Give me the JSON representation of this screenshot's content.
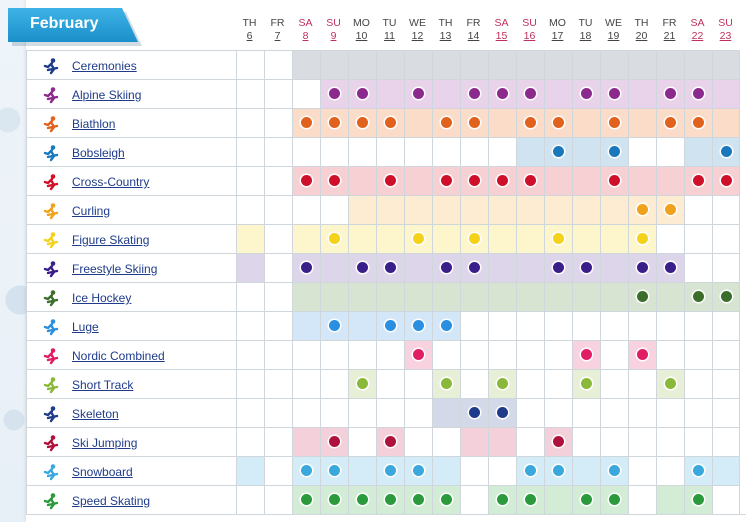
{
  "month": "February",
  "days": [
    {
      "name": "TH",
      "date": "6",
      "weekend": false
    },
    {
      "name": "FR",
      "date": "7",
      "weekend": false
    },
    {
      "name": "SA",
      "date": "8",
      "weekend": true
    },
    {
      "name": "SU",
      "date": "9",
      "weekend": true
    },
    {
      "name": "MO",
      "date": "10",
      "weekend": false
    },
    {
      "name": "TU",
      "date": "11",
      "weekend": false
    },
    {
      "name": "WE",
      "date": "12",
      "weekend": false
    },
    {
      "name": "TH",
      "date": "13",
      "weekend": false
    },
    {
      "name": "FR",
      "date": "14",
      "weekend": false
    },
    {
      "name": "SA",
      "date": "15",
      "weekend": true
    },
    {
      "name": "SU",
      "date": "16",
      "weekend": true
    },
    {
      "name": "MO",
      "date": "17",
      "weekend": false
    },
    {
      "name": "TU",
      "date": "18",
      "weekend": false
    },
    {
      "name": "WE",
      "date": "19",
      "weekend": false
    },
    {
      "name": "TH",
      "date": "20",
      "weekend": false
    },
    {
      "name": "FR",
      "date": "21",
      "weekend": false
    },
    {
      "name": "SA",
      "date": "22",
      "weekend": true
    },
    {
      "name": "SU",
      "date": "23",
      "weekend": true
    }
  ],
  "sports": [
    {
      "name": "Ceremonies",
      "icon": "ceremonies-icon",
      "color": "#1f3c8a",
      "tint": "#d9dde2",
      "days": [
        2,
        3,
        4,
        5,
        6,
        7,
        8,
        9,
        10,
        11,
        12,
        13,
        14,
        15,
        16,
        17
      ],
      "events": []
    },
    {
      "name": "Alpine Skiing",
      "icon": "alpine-skiing-icon",
      "color": "#8b2a8c",
      "tint": "#e8d3ea",
      "days": [
        3,
        4,
        5,
        6,
        7,
        8,
        9,
        10,
        11,
        12,
        13,
        14,
        15,
        16,
        17
      ],
      "events": [
        3,
        4,
        6,
        8,
        9,
        10,
        12,
        13,
        15,
        16
      ]
    },
    {
      "name": "Biathlon",
      "icon": "biathlon-icon",
      "color": "#e0621c",
      "tint": "#fbdcc9",
      "days": [
        2,
        3,
        4,
        5,
        6,
        7,
        8,
        9,
        10,
        11,
        12,
        13,
        14,
        15,
        16,
        17
      ],
      "events": [
        2,
        3,
        4,
        5,
        7,
        8,
        10,
        11,
        13,
        15,
        16
      ]
    },
    {
      "name": "Bobsleigh",
      "icon": "bobsleigh-icon",
      "color": "#1a79bd",
      "tint": "#cfe3f1",
      "days": [
        10,
        11,
        12,
        13,
        16,
        17
      ],
      "events": [
        11,
        13,
        17
      ]
    },
    {
      "name": "Cross-Country",
      "icon": "cross-country-icon",
      "color": "#d0102a",
      "tint": "#f7d0d4",
      "days": [
        2,
        3,
        4,
        5,
        6,
        7,
        8,
        9,
        10,
        11,
        12,
        13,
        14,
        15,
        16,
        17
      ],
      "events": [
        2,
        3,
        5,
        7,
        8,
        9,
        10,
        13,
        16,
        17
      ]
    },
    {
      "name": "Curling",
      "icon": "curling-icon",
      "color": "#f0a21c",
      "tint": "#fdecd2",
      "days": [
        4,
        5,
        6,
        7,
        8,
        9,
        10,
        11,
        12,
        13,
        14,
        15
      ],
      "events": [
        14,
        15
      ]
    },
    {
      "name": "Figure Skating",
      "icon": "figure-skating-icon",
      "color": "#f5d21a",
      "tint": "#fdf6cd",
      "days": [
        0,
        2,
        3,
        4,
        5,
        6,
        7,
        8,
        9,
        10,
        11,
        12,
        13,
        14
      ],
      "events": [
        3,
        6,
        8,
        11,
        14
      ]
    },
    {
      "name": "Freestyle Skiing",
      "icon": "freestyle-skiing-icon",
      "color": "#3a1f8a",
      "tint": "#ddd6ea",
      "days": [
        0,
        2,
        3,
        4,
        5,
        6,
        7,
        8,
        9,
        10,
        11,
        12,
        13,
        14,
        15
      ],
      "events": [
        2,
        4,
        5,
        7,
        8,
        11,
        12,
        14,
        15
      ]
    },
    {
      "name": "Ice Hockey",
      "icon": "ice-hockey-icon",
      "color": "#3a6e2a",
      "tint": "#d6e4d1",
      "days": [
        2,
        3,
        4,
        5,
        6,
        7,
        8,
        9,
        10,
        11,
        12,
        13,
        14,
        15,
        16,
        17
      ],
      "events": [
        14,
        16,
        17
      ]
    },
    {
      "name": "Luge",
      "icon": "luge-icon",
      "color": "#2a8fe0",
      "tint": "#d3e7f8",
      "days": [
        2,
        3,
        4,
        5,
        6,
        7
      ],
      "events": [
        3,
        5,
        6,
        7
      ]
    },
    {
      "name": "Nordic Combined",
      "icon": "nordic-combined-icon",
      "color": "#e01c64",
      "tint": "#f9d2df",
      "days": [
        6,
        12,
        14
      ],
      "events": [
        6,
        12,
        14
      ]
    },
    {
      "name": "Short Track",
      "icon": "short-track-icon",
      "color": "#8ab83a",
      "tint": "#e7f0d6",
      "days": [
        4,
        7,
        9,
        12,
        15
      ],
      "events": [
        4,
        7,
        9,
        12,
        15
      ]
    },
    {
      "name": "Skeleton",
      "icon": "skeleton-icon",
      "color": "#1f3c8a",
      "tint": "#d3d9e8",
      "days": [
        7,
        8,
        9
      ],
      "events": [
        8,
        9
      ]
    },
    {
      "name": "Ski Jumping",
      "icon": "ski-jumping-icon",
      "color": "#b0103c",
      "tint": "#f3d0da",
      "days": [
        2,
        3,
        5,
        8,
        9,
        11
      ],
      "events": [
        3,
        5,
        11
      ]
    },
    {
      "name": "Snowboard",
      "icon": "snowboard-icon",
      "color": "#3aa8dc",
      "tint": "#d3ecf7",
      "days": [
        0,
        2,
        3,
        4,
        5,
        6,
        7,
        10,
        11,
        12,
        13,
        16,
        17
      ],
      "events": [
        2,
        3,
        5,
        6,
        10,
        11,
        13,
        16
      ]
    },
    {
      "name": "Speed Skating",
      "icon": "speed-skating-icon",
      "color": "#2a9a3a",
      "tint": "#d3ecd6",
      "days": [
        2,
        3,
        4,
        5,
        6,
        7,
        9,
        10,
        11,
        12,
        13,
        15,
        16
      ],
      "events": [
        2,
        3,
        4,
        5,
        6,
        7,
        9,
        10,
        12,
        13,
        16
      ]
    }
  ]
}
